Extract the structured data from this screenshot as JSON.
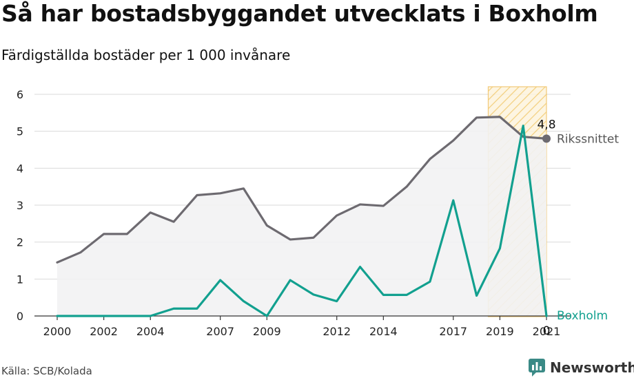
{
  "title": "Så har bostadsbyggandet utvecklats i Boxholm",
  "subtitle": "Färdigställda bostäder per 1 000 invånare",
  "source": "Källa: SCB/Kolada",
  "brand": "Newsworthy",
  "colors": {
    "riks": "#6d6a70",
    "boxholm": "#12a08f",
    "highlight": "#f0c060",
    "grid": "#d9d9d9"
  },
  "chart_data": {
    "type": "line",
    "x": [
      2000,
      2001,
      2002,
      2003,
      2004,
      2005,
      2006,
      2007,
      2008,
      2009,
      2010,
      2011,
      2012,
      2013,
      2014,
      2015,
      2016,
      2017,
      2018,
      2019,
      2020,
      2021
    ],
    "x_tick_labels": [
      "2000",
      "2002",
      "2004",
      "2007",
      "2009",
      "2012",
      "2014",
      "2017",
      "2019",
      "2021"
    ],
    "ylim": [
      0,
      6
    ],
    "y_ticks": [
      0,
      1,
      2,
      3,
      4,
      5,
      6
    ],
    "grid": true,
    "highlight_range": [
      2018.5,
      2021
    ],
    "series": [
      {
        "name": "Rikssnittet",
        "values": [
          1.45,
          1.72,
          2.22,
          2.22,
          2.8,
          2.55,
          3.27,
          3.32,
          3.45,
          2.45,
          2.07,
          2.12,
          2.72,
          3.02,
          2.98,
          3.5,
          4.25,
          4.75,
          5.37,
          5.39,
          4.85,
          4.8
        ],
        "end_label": "4,8"
      },
      {
        "name": "Boxholm",
        "values": [
          0,
          0,
          0,
          0,
          0,
          0.2,
          0.2,
          0.97,
          0.4,
          0,
          0.97,
          0.58,
          0.4,
          1.33,
          0.57,
          0.57,
          0.93,
          3.13,
          0.55,
          1.83,
          5.15,
          0
        ],
        "end_label": "0"
      }
    ]
  }
}
